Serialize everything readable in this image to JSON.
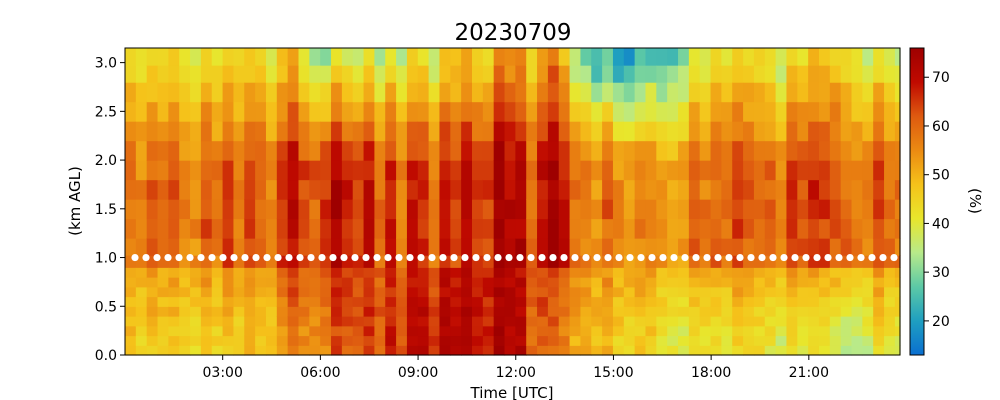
{
  "chart_data": {
    "type": "heatmap",
    "title": "20230709",
    "xlabel": "Time [UTC]",
    "ylabel": "(km AGL)",
    "colorbar_label": "(%)",
    "x_unit": "hours UTC",
    "xlim": [
      0,
      23.8
    ],
    "ylim": [
      0,
      3.15
    ],
    "xticks": [
      3,
      6,
      9,
      12,
      15,
      18,
      21
    ],
    "xtick_labels": [
      "03:00",
      "06:00",
      "09:00",
      "12:00",
      "15:00",
      "18:00",
      "21:00"
    ],
    "yticks": [
      0.0,
      0.5,
      1.0,
      1.5,
      2.0,
      2.5,
      3.0
    ],
    "ytick_labels": [
      "0.0",
      "0.5",
      "1.0",
      "1.5",
      "2.0",
      "2.5",
      "3.0"
    ],
    "color_range": [
      13,
      76
    ],
    "colorbar_ticks": [
      20,
      30,
      40,
      50,
      60,
      70
    ],
    "colorbar_tick_labels": [
      "20",
      "30",
      "40",
      "50",
      "60",
      "70"
    ],
    "colormap": [
      "#0a6fd0",
      "#1f9fc0",
      "#5cc9a6",
      "#b8ea8a",
      "#e8e62c",
      "#f5c21a",
      "#eb8a12",
      "#de5a10",
      "#c00a00",
      "#9e0000"
    ],
    "marker_line": {
      "height_km": 1.0,
      "color": "#ffffff",
      "description": "dotted white marker row"
    },
    "time_bin_hours": 0.333,
    "heights_km": [
      0.05,
      0.15,
      0.25,
      0.35,
      0.45,
      0.55,
      0.65,
      0.75,
      0.85,
      0.95,
      1.1,
      1.3,
      1.5,
      1.7,
      1.9,
      2.1,
      2.3,
      2.5,
      2.7,
      2.9,
      3.05
    ],
    "surface_profile_by_hour": [
      45,
      44,
      46,
      44,
      45,
      56,
      58,
      62,
      66,
      70,
      72,
      72,
      68,
      55,
      50,
      48,
      47,
      42,
      40,
      42,
      40,
      38,
      35,
      40
    ],
    "mid_profile_by_hour": [
      55,
      57,
      60,
      58,
      58,
      66,
      68,
      64,
      63,
      63,
      66,
      69,
      66,
      68,
      55,
      60,
      58,
      58,
      57,
      58,
      60,
      60,
      60,
      58
    ],
    "upper_profile_by_hour": [
      42,
      40,
      45,
      40,
      40,
      45,
      35,
      36,
      38,
      40,
      48,
      50,
      48,
      52,
      25,
      22,
      28,
      35,
      40,
      42,
      40,
      42,
      45,
      35
    ]
  }
}
